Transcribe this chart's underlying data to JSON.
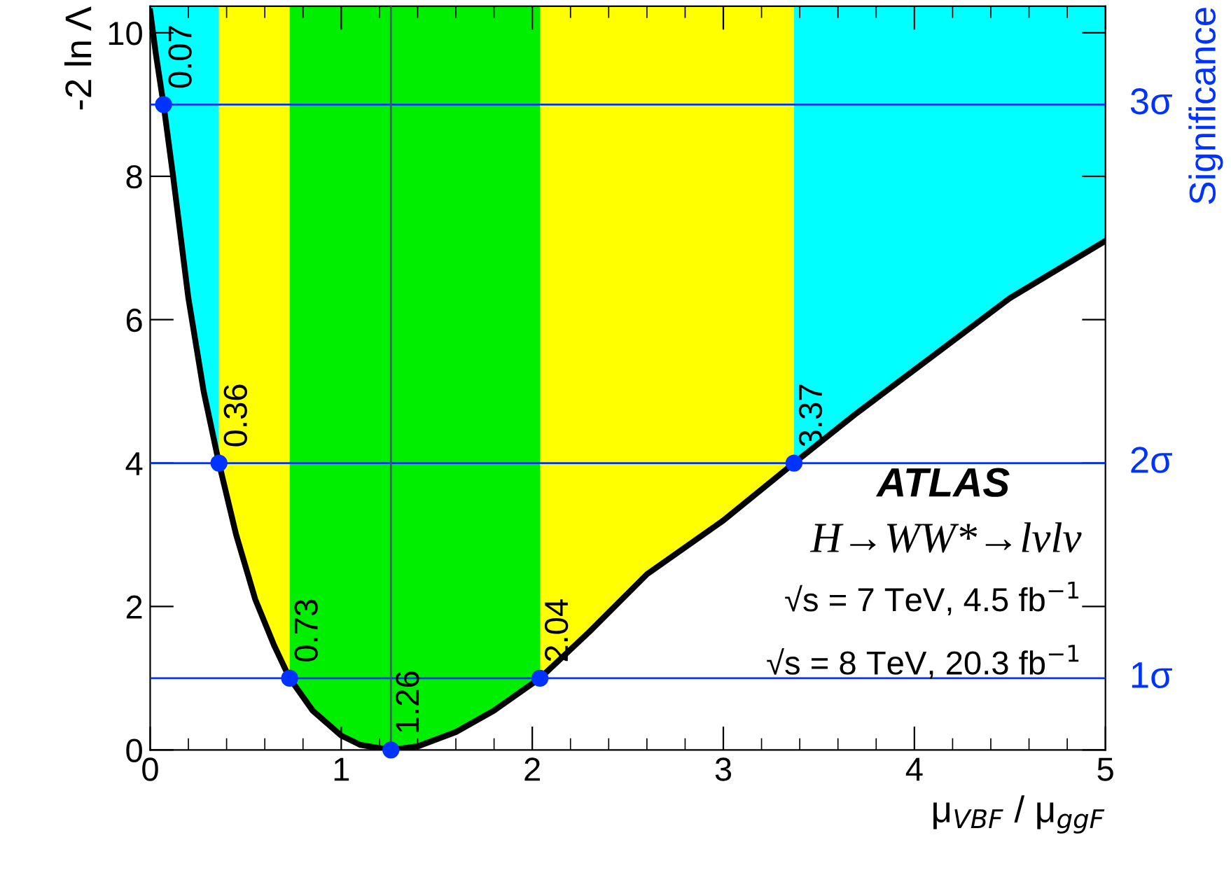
{
  "chart_data": {
    "type": "line",
    "xlabel": "μ$_{VBF}$ / μ$_{ggF}$",
    "ylabel": "-2 ln Λ",
    "y2label": "Significance",
    "xlim": [
      0,
      5
    ],
    "xticks": [
      0,
      1,
      2,
      3,
      4,
      5
    ],
    "ylim": [
      0,
      10.37
    ],
    "yticks": [
      0,
      2,
      4,
      6,
      8,
      10
    ],
    "grid": false,
    "series": [
      {
        "color": "#000000",
        "line_style": "solid",
        "marker": "none",
        "x": [
          0.0,
          0.03,
          0.07,
          0.12,
          0.2,
          0.28,
          0.36,
          0.45,
          0.55,
          0.65,
          0.73,
          0.85,
          1.0,
          1.1,
          1.26,
          1.4,
          1.6,
          1.8,
          2.04,
          2.3,
          2.6,
          3.0,
          3.37,
          3.7,
          4.0,
          4.5,
          5.0
        ],
        "values": [
          10.3,
          9.7,
          9.0,
          8.0,
          6.3,
          5.0,
          4.0,
          3.0,
          2.1,
          1.45,
          1.0,
          0.55,
          0.2,
          0.07,
          0.0,
          0.05,
          0.25,
          0.55,
          1.0,
          1.65,
          2.45,
          3.2,
          4.0,
          4.7,
          5.3,
          6.3,
          7.1
        ]
      },
      {
        "type": "scatter",
        "color": "#0033ff",
        "marker": "circle",
        "x": [
          0.07,
          0.36,
          0.73,
          1.26,
          2.04,
          3.37
        ],
        "values": [
          9,
          4,
          1,
          0,
          1,
          4
        ]
      }
    ],
    "bands": [
      {
        "axis": "x",
        "from": 0,
        "to": 0.36,
        "color": "#00ffff"
      },
      {
        "axis": "x",
        "from": 0.36,
        "to": 0.73,
        "color": "#ffff00"
      },
      {
        "axis": "x",
        "from": 0.73,
        "to": 2.04,
        "color": "#00ee00"
      },
      {
        "axis": "x",
        "from": 2.04,
        "to": 3.37,
        "color": "#ffff00"
      },
      {
        "axis": "x",
        "from": 3.37,
        "to": 5,
        "color": "#00ffff"
      }
    ],
    "ref_lines": [
      {
        "axis": "y",
        "value": 1,
        "color": "#0033ff",
        "label": "1σ"
      },
      {
        "axis": "y",
        "value": 4,
        "color": "#0033ff",
        "label": "2σ"
      },
      {
        "axis": "y",
        "value": 9,
        "color": "#0033ff",
        "label": "3σ"
      },
      {
        "axis": "x",
        "value": 1.26,
        "color": "#445566"
      }
    ],
    "annotations": [
      {
        "text": "0.07",
        "x": 0.07,
        "y": 9
      },
      {
        "text": "0.36",
        "x": 0.36,
        "y": 4
      },
      {
        "text": "0.73",
        "x": 0.73,
        "y": 1
      },
      {
        "text": "1.26",
        "x": 1.26,
        "y": 0
      },
      {
        "text": "2.04",
        "x": 2.04,
        "y": 1
      },
      {
        "text": "3.37",
        "x": 3.37,
        "y": 4
      },
      "ATLAS",
      "H→WW*→lνlν",
      "√s = 7 TeV, 4.5 fb$^{−1}$",
      "√s = 8 TeV, 20.3 fb$^{−1}$"
    ]
  }
}
